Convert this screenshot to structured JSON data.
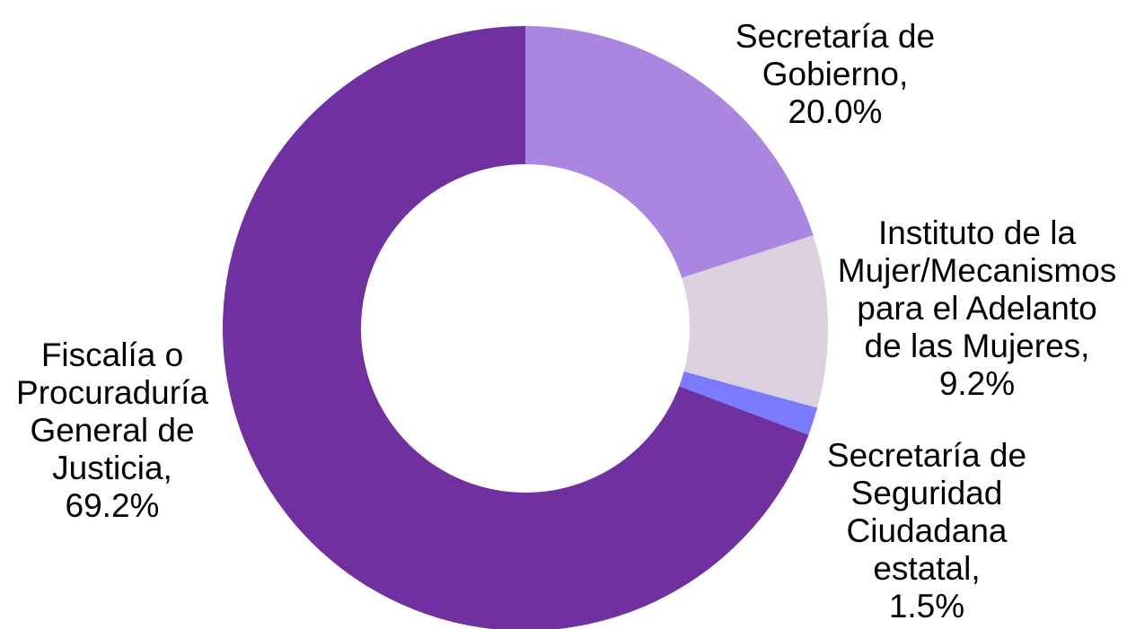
{
  "chart_data": {
    "type": "pie",
    "donut": true,
    "slices": [
      {
        "label_lines": [
          "Secretaría de",
          "Gobierno,",
          "20.0%"
        ],
        "value": 20.0,
        "color": "#ab86e0"
      },
      {
        "label_lines": [
          "Instituto de la",
          "Mujer/Mecanismos",
          "para el Adelanto",
          "de las Mujeres,",
          "9.2%"
        ],
        "value": 9.2,
        "color": "#dcd0df"
      },
      {
        "label_lines": [
          "Secretaría de",
          "Seguridad",
          "Ciudadana",
          "estatal,",
          "1.5%"
        ],
        "value": 1.5,
        "color": "#7b7bff"
      },
      {
        "label_lines": [
          "Fiscalía o",
          "Procuraduría",
          "General de",
          "Justicia,",
          "69.2%"
        ],
        "value": 69.2,
        "color": "#70309f"
      }
    ]
  }
}
